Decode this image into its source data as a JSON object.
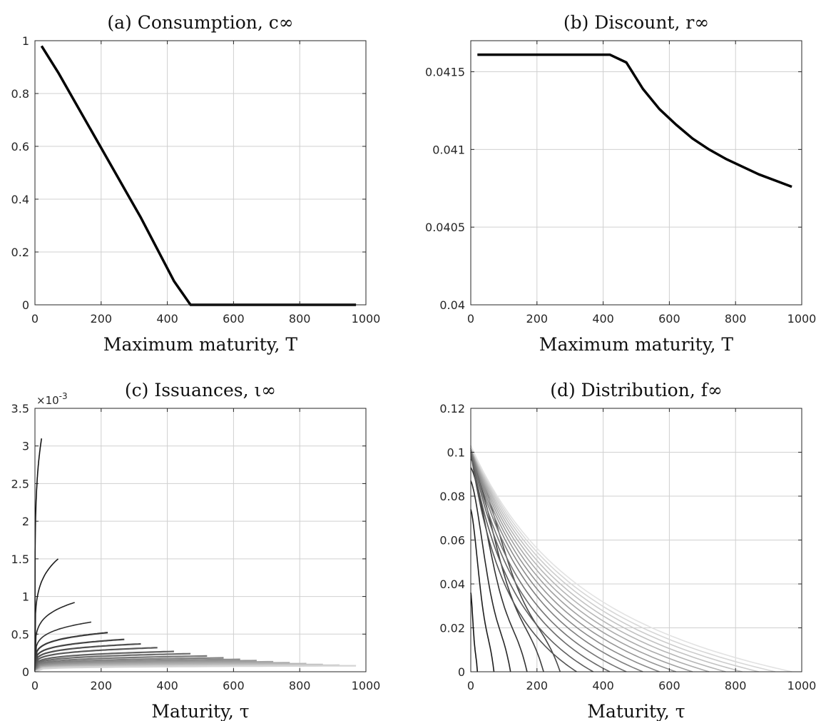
{
  "chart_data": [
    {
      "id": "a",
      "type": "line",
      "title": "(a) Consumption, c∞",
      "xlabel": "Maximum maturity, T",
      "ylabel": "",
      "xlim": [
        0,
        1000
      ],
      "ylim": [
        0,
        1
      ],
      "xticks": [
        0,
        200,
        400,
        600,
        800,
        1000
      ],
      "yticks": [
        0,
        0.2,
        0.4,
        0.6,
        0.8,
        1
      ],
      "xtick_labels": [
        "0",
        "200",
        "400",
        "600",
        "800",
        "1000"
      ],
      "ytick_labels": [
        "0",
        "0.2",
        "0.4",
        "0.6",
        "0.8",
        "1"
      ],
      "grid": true,
      "series": [
        {
          "x": [
            20,
            70,
            120,
            170,
            220,
            270,
            320,
            370,
            420,
            470,
            520,
            620,
            720,
            820,
            920,
            970
          ],
          "y": [
            0.98,
            0.88,
            0.77,
            0.66,
            0.55,
            0.44,
            0.33,
            0.21,
            0.09,
            0.0,
            0.0,
            0.0,
            0.0,
            0.0,
            0.0,
            0.0
          ]
        }
      ],
      "color": "#000000"
    },
    {
      "id": "b",
      "type": "line",
      "title": "(b) Discount, r∞",
      "xlabel": "Maximum maturity, T",
      "ylabel": "",
      "xlim": [
        0,
        1000
      ],
      "ylim": [
        0.04,
        0.0417
      ],
      "xticks": [
        0,
        200,
        400,
        600,
        800,
        1000
      ],
      "yticks": [
        0.04,
        0.0405,
        0.041,
        0.0415
      ],
      "xtick_labels": [
        "0",
        "200",
        "400",
        "600",
        "800",
        "1000"
      ],
      "ytick_labels": [
        "0.04",
        "0.0405",
        "0.041",
        "0.0415"
      ],
      "grid": true,
      "series": [
        {
          "x": [
            20,
            100,
            200,
            300,
            420,
            470,
            520,
            570,
            620,
            670,
            720,
            770,
            820,
            870,
            920,
            970
          ],
          "y": [
            0.04161,
            0.04161,
            0.04161,
            0.04161,
            0.04161,
            0.04156,
            0.04139,
            0.04126,
            0.04116,
            0.04107,
            0.041,
            0.04094,
            0.04089,
            0.04084,
            0.0408,
            0.04076
          ]
        }
      ],
      "color": "#000000"
    },
    {
      "id": "c",
      "type": "line",
      "title": "(c) Issuances, ι∞",
      "xlabel": "Maturity, τ",
      "ylabel": "",
      "xlim": [
        0,
        1000
      ],
      "ylim": [
        0,
        0.0035
      ],
      "xticks": [
        0,
        200,
        400,
        600,
        800,
        1000
      ],
      "yticks": [
        0,
        0.0005,
        0.001,
        0.0015,
        0.002,
        0.0025,
        0.003,
        0.0035
      ],
      "xtick_labels": [
        "0",
        "200",
        "400",
        "600",
        "800",
        "1000"
      ],
      "ytick_labels": [
        "0",
        "0.5",
        "1",
        "1.5",
        "2",
        "2.5",
        "3",
        "3.5"
      ],
      "y_exponent_label": "×10-3",
      "grid": true,
      "family": {
        "maturities_T": [
          20,
          70,
          120,
          170,
          220,
          270,
          320,
          370,
          420,
          470,
          520,
          570,
          620,
          670,
          720,
          770,
          820,
          870,
          920,
          970
        ],
        "end_values": [
          0.0031,
          0.0015,
          0.00092,
          0.00066,
          0.00052,
          0.00043,
          0.00037,
          0.00032,
          0.00027,
          0.00024,
          0.00021,
          0.000185,
          0.000165,
          0.000148,
          0.000133,
          0.00012,
          0.000108,
          9.7e-05,
          8.8e-05,
          8e-05
        ],
        "color_dark": "#111111",
        "color_light": "#d4d4d4"
      }
    },
    {
      "id": "d",
      "type": "line",
      "title": "(d) Distribution, f∞",
      "xlabel": "Maturity, τ",
      "ylabel": "",
      "xlim": [
        0,
        1000
      ],
      "ylim": [
        0,
        0.12
      ],
      "xticks": [
        0,
        200,
        400,
        600,
        800,
        1000
      ],
      "yticks": [
        0,
        0.02,
        0.04,
        0.06,
        0.08,
        0.1,
        0.12
      ],
      "xtick_labels": [
        "0",
        "200",
        "400",
        "600",
        "800",
        "1000"
      ],
      "ytick_labels": [
        "0",
        "0.02",
        "0.04",
        "0.06",
        "0.08",
        "0.1",
        "0.12"
      ],
      "grid": true,
      "family": {
        "maturities_T": [
          20,
          70,
          120,
          170,
          220,
          270,
          320,
          370,
          420,
          470,
          520,
          570,
          620,
          670,
          720,
          770,
          820,
          870,
          920,
          970
        ],
        "start_values": [
          0.036,
          0.074,
          0.087,
          0.093,
          0.097,
          0.099,
          0.1,
          0.101,
          0.102,
          0.102,
          0.103,
          0.103,
          0.103,
          0.103,
          0.103,
          0.103,
          0.103,
          0.103,
          0.103,
          0.103
        ],
        "color_dark": "#111111",
        "color_light": "#e2e2e2"
      }
    }
  ]
}
